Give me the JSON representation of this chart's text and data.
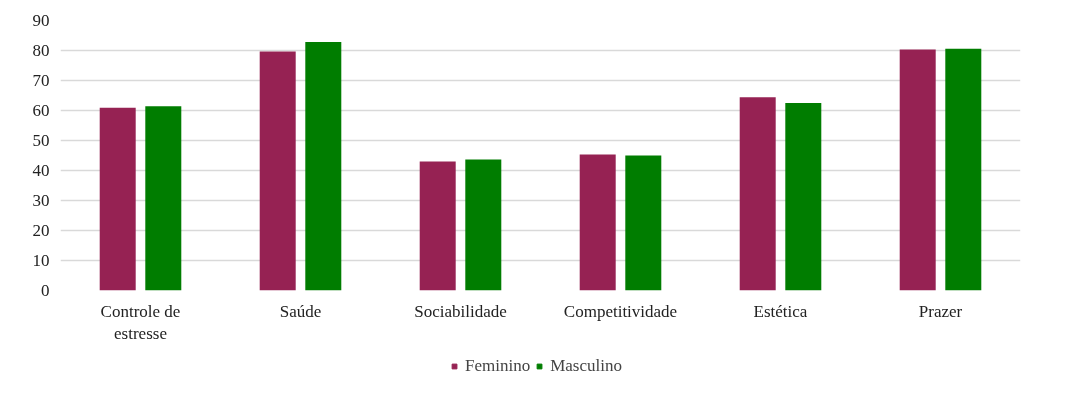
{
  "chart_data": {
    "type": "bar",
    "categories": [
      "Controle de estresse",
      "Saúde",
      "Sociabilidade",
      "Competitividade",
      "Estética",
      "Prazer"
    ],
    "series": [
      {
        "name": "Feminino",
        "color": "#962253",
        "values": [
          60.9,
          79.7,
          43.0,
          45.3,
          64.4,
          80.3
        ]
      },
      {
        "name": "Masculino",
        "color": "#007d00",
        "values": [
          61.4,
          82.8,
          43.7,
          45.0,
          62.5,
          80.6
        ]
      }
    ],
    "ylim": [
      0,
      90
    ],
    "yticks": [
      0,
      10,
      20,
      30,
      40,
      50,
      60,
      70,
      80,
      90
    ],
    "grid": "y",
    "legend": "bottom"
  }
}
